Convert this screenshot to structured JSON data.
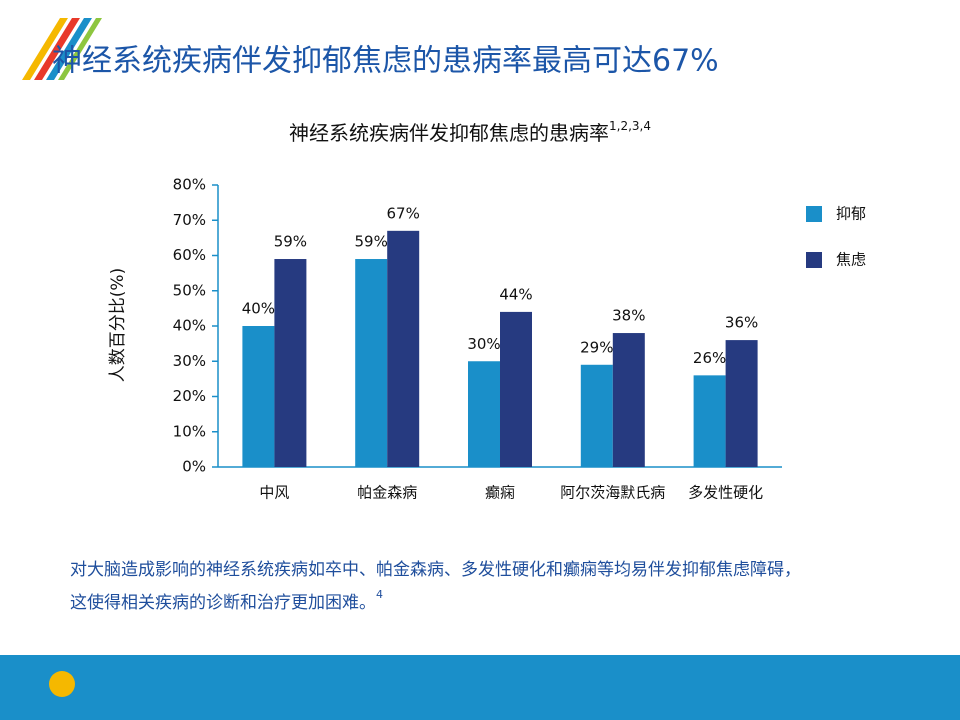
{
  "slide": {
    "title": "神经系统疾病伴发抑郁焦虑的患病率最高可达67%",
    "body": "对大脑造成影响的神经系统疾病如卒中、帕金森病、多发性硬化和癫痫等均易伴发抑郁焦虑障碍，",
    "body_line2": "这使得相关疾病的诊断和治疗更加困难。",
    "body_ref": "4"
  },
  "chart_data": {
    "type": "bar",
    "title": "神经系统疾病伴发抑郁焦虑的患病率",
    "title_ref": "1,2,3,4",
    "y_label": "人数百分比(%)",
    "categories": [
      "中风",
      "帕金森病",
      "癫痫",
      "阿尔茨海默氏病",
      "多发性硬化"
    ],
    "series": [
      {
        "name": "抑郁",
        "color": "#1a8fc9",
        "values": [
          40,
          59,
          30,
          29,
          26
        ],
        "value_labels": [
          "40%",
          "59%",
          "30%",
          "29%",
          "26%"
        ]
      },
      {
        "name": "焦虑",
        "color": "#263a80",
        "values": [
          59,
          67,
          44,
          38,
          36
        ],
        "value_labels": [
          "59%",
          "67%",
          "44%",
          "38%",
          "36%"
        ]
      }
    ],
    "ylim": [
      0,
      80
    ],
    "yticks": [
      {
        "value": 0,
        "label": "0%"
      },
      {
        "value": 10,
        "label": "10%"
      },
      {
        "value": 20,
        "label": "20%"
      },
      {
        "value": 30,
        "label": "30%"
      },
      {
        "value": 40,
        "label": "40%"
      },
      {
        "value": 50,
        "label": "50%"
      },
      {
        "value": 60,
        "label": "60%"
      },
      {
        "value": 70,
        "label": "70%"
      },
      {
        "value": 80,
        "label": "80%"
      }
    ],
    "legend": "right",
    "grid": false
  }
}
